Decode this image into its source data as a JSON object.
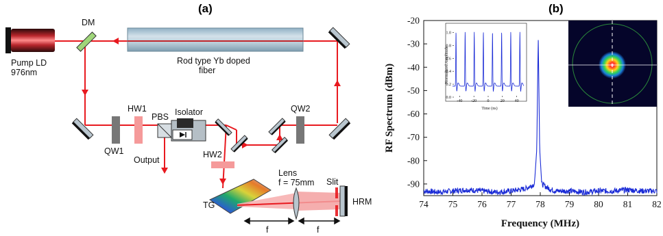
{
  "panel_a": {
    "label": "(a)",
    "components": {
      "pump": "Pump LD",
      "pump_wavelength": "976nm",
      "dm": "DM",
      "fiber_line1": "Rod type Yb doped",
      "fiber_line2": "fiber",
      "hw1": "HW1",
      "pbs": "PBS",
      "isolator": "Isolator",
      "qw1": "QW1",
      "qw2": "QW2",
      "output": "Output",
      "hw2": "HW2",
      "lens": "Lens",
      "focal": "f = 75mm",
      "slit": "Slit",
      "hrm": "HRM",
      "tg": "TG",
      "f_left": "f",
      "f_right": "f"
    },
    "colors": {
      "beam": "#e8191f",
      "fiber": "#a9c4d4",
      "mirror": "#b9c6cf",
      "waveplate_hw": "#f59a9a",
      "waveplate_qw": "#777777",
      "dichroic": "#9fd67a"
    }
  },
  "chart_data": [
    {
      "type": "line",
      "panel_label": "(b)",
      "title": "",
      "xlabel": "Frequency (MHz)",
      "ylabel": "RF Spectrum (dBm)",
      "xlim": [
        74,
        82
      ],
      "ylim": [
        -95,
        -20
      ],
      "xticks": [
        74,
        75,
        76,
        77,
        78,
        79,
        80,
        81,
        82
      ],
      "yticks": [
        -20,
        -30,
        -40,
        -50,
        -60,
        -70,
        -80,
        -90
      ],
      "noise_floor": -93,
      "peak": {
        "x": 77.93,
        "y": -27
      },
      "series": [
        {
          "color": "#1a2bd6",
          "x": [
            74.0,
            74.5,
            75.0,
            75.5,
            76.0,
            76.5,
            77.0,
            77.5,
            77.8,
            77.88,
            77.93,
            77.98,
            78.05,
            78.3,
            78.5,
            79.0,
            79.5,
            80.0,
            80.5,
            81.0,
            81.5,
            82.0
          ],
          "y": [
            -93,
            -93.5,
            -93,
            -92.5,
            -93,
            -93.5,
            -93,
            -92,
            -90,
            -75,
            -27,
            -75,
            -90,
            -92,
            -93,
            -93,
            -93.5,
            -93,
            -93,
            -92.5,
            -93,
            -93
          ]
        }
      ]
    },
    {
      "type": "line",
      "title": "",
      "xlabel": "Time (ns)",
      "ylabel": "Normalized Amplitude",
      "xlim": [
        -50,
        50
      ],
      "ylim": [
        0,
        1.1
      ],
      "xticks": [
        -40,
        -20,
        0,
        20,
        40
      ],
      "yticks": [
        0.0,
        0.2,
        0.4,
        0.6,
        0.8,
        1.0
      ],
      "pulse_period_ns": 12.8,
      "pulse_peaks_ns": [
        -45.1,
        -32.3,
        -19.5,
        -6.7,
        6.1,
        18.9,
        31.7,
        44.5
      ],
      "baseline": 0.17,
      "series": [
        {
          "color": "#1a2bd6"
        }
      ]
    }
  ]
}
